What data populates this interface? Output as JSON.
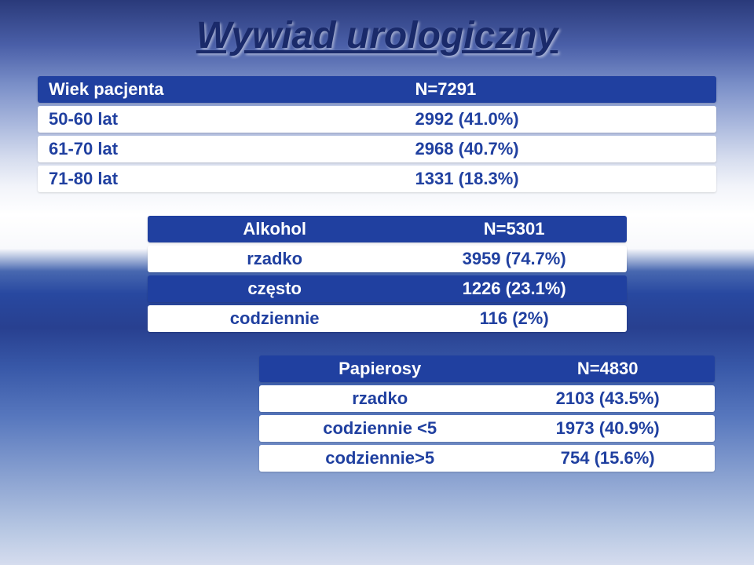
{
  "title": "Wywiad urologiczny",
  "table1": {
    "header": {
      "l": "Wiek pacjenta",
      "r": "N=7291"
    },
    "rows": [
      {
        "l": "50-60 lat",
        "r": "2992 (41.0%)"
      },
      {
        "l": "61-70 lat",
        "r": "2968 (40.7%)"
      },
      {
        "l": "71-80 lat",
        "r": "1331 (18.3%)"
      }
    ]
  },
  "table2": {
    "header": {
      "l": "Alkohol",
      "r": "N=5301"
    },
    "rows": [
      {
        "l": "rzadko",
        "r": "3959 (74.7%)"
      },
      {
        "l": "często",
        "r": "1226 (23.1%)"
      },
      {
        "l": "codziennie",
        "r": "116 (2%)"
      }
    ]
  },
  "table3": {
    "header": {
      "l": "Papierosy",
      "r": "N=4830"
    },
    "rows": [
      {
        "l": "rzadko",
        "r": "2103 (43.5%)"
      },
      {
        "l": "codziennie <5",
        "r": "1973 (40.9%)"
      },
      {
        "l": "codziennie>5",
        "r": "754 (15.6%)"
      }
    ]
  }
}
